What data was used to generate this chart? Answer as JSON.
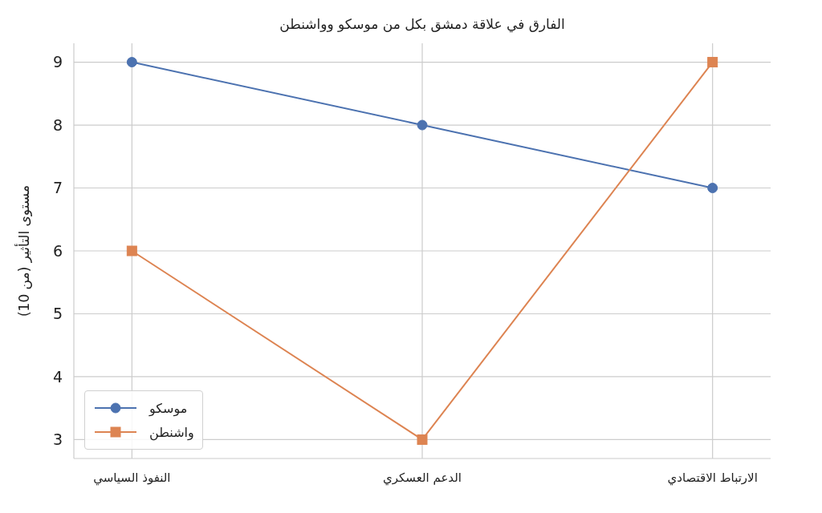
{
  "chart_data": {
    "type": "line",
    "title": "الفارق في علاقة دمشق بكل من موسكو وواشنطن",
    "ylabel": "مستوى التأثير (من 10)",
    "categories": [
      "النفوذ السياسي",
      "الدعم العسكري",
      "الارتباط الاقتصادي"
    ],
    "series": [
      {
        "name": "موسكو",
        "color": "#4c72b0",
        "marker": "circle",
        "values": [
          9,
          8,
          7
        ]
      },
      {
        "name": "واشنطن",
        "color": "#dd8452",
        "marker": "square",
        "values": [
          6,
          3,
          9
        ]
      }
    ],
    "ylim": [
      2.7,
      9.3
    ],
    "yticks": [
      3,
      4,
      5,
      6,
      7,
      8,
      9
    ],
    "grid": true,
    "legend": "bottom left"
  }
}
